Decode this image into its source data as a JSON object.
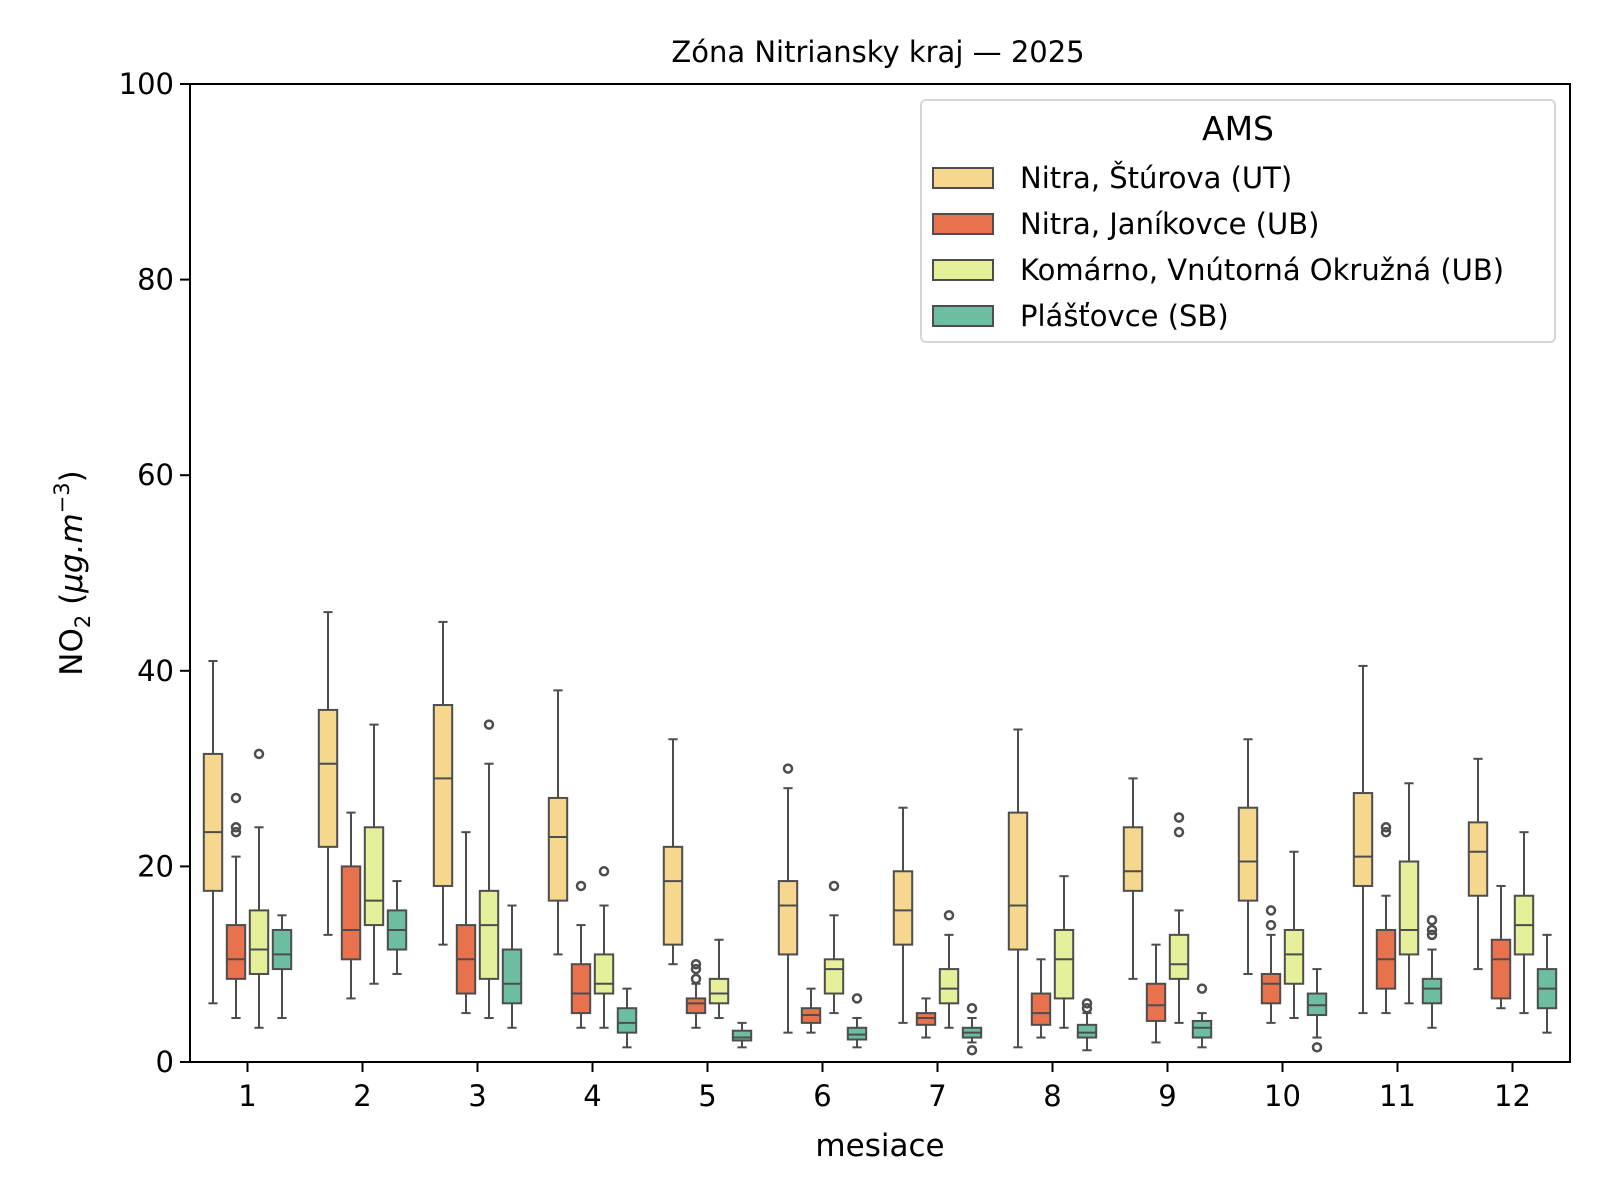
{
  "chart_data": {
    "type": "box",
    "title": "Zóna Nitriansky kraj —  2025",
    "xlabel": "mesiace",
    "ylabel": {
      "quantity": "NO",
      "subscript": "2",
      "unit_prefix": "μg.m",
      "unit_exp": "−3"
    },
    "ylim": [
      0,
      100
    ],
    "yticks": [
      "0",
      "20",
      "40",
      "60",
      "80",
      "100"
    ],
    "categories": [
      "1",
      "2",
      "3",
      "4",
      "5",
      "6",
      "7",
      "8",
      "9",
      "10",
      "11",
      "12"
    ],
    "legend": {
      "title": "AMS",
      "position": "upper right"
    },
    "series": [
      {
        "name": "Nitra, Štúrova (UT)",
        "color": "#f5d78e",
        "boxes": [
          {
            "q1": 17.5,
            "med": 23.5,
            "q3": 31.5,
            "lo": 6.0,
            "hi": 41.0,
            "fliers": []
          },
          {
            "q1": 22.0,
            "med": 30.5,
            "q3": 36.0,
            "lo": 13.0,
            "hi": 46.0,
            "fliers": []
          },
          {
            "q1": 18.0,
            "med": 29.0,
            "q3": 36.5,
            "lo": 12.0,
            "hi": 45.0,
            "fliers": []
          },
          {
            "q1": 16.5,
            "med": 23.0,
            "q3": 27.0,
            "lo": 11.0,
            "hi": 38.0,
            "fliers": []
          },
          {
            "q1": 12.0,
            "med": 18.5,
            "q3": 22.0,
            "lo": 10.0,
            "hi": 33.0,
            "fliers": []
          },
          {
            "q1": 11.0,
            "med": 16.0,
            "q3": 18.5,
            "lo": 3.0,
            "hi": 28.0,
            "fliers": [
              30.0
            ]
          },
          {
            "q1": 12.0,
            "med": 15.5,
            "q3": 19.5,
            "lo": 4.0,
            "hi": 26.0,
            "fliers": []
          },
          {
            "q1": 11.5,
            "med": 16.0,
            "q3": 25.5,
            "lo": 1.5,
            "hi": 34.0,
            "fliers": []
          },
          {
            "q1": 17.5,
            "med": 19.5,
            "q3": 24.0,
            "lo": 8.5,
            "hi": 29.0,
            "fliers": []
          },
          {
            "q1": 16.5,
            "med": 20.5,
            "q3": 26.0,
            "lo": 9.0,
            "hi": 33.0,
            "fliers": []
          },
          {
            "q1": 18.0,
            "med": 21.0,
            "q3": 27.5,
            "lo": 5.0,
            "hi": 40.5,
            "fliers": []
          },
          {
            "q1": 17.0,
            "med": 21.5,
            "q3": 24.5,
            "lo": 9.5,
            "hi": 31.0,
            "fliers": []
          }
        ]
      },
      {
        "name": "Nitra, Janíkovce (UB)",
        "color": "#e8724e",
        "boxes": [
          {
            "q1": 8.5,
            "med": 10.5,
            "q3": 14.0,
            "lo": 4.5,
            "hi": 21.0,
            "fliers": [
              23.5,
              24.0,
              27.0
            ]
          },
          {
            "q1": 10.5,
            "med": 13.5,
            "q3": 20.0,
            "lo": 6.5,
            "hi": 25.5,
            "fliers": []
          },
          {
            "q1": 7.0,
            "med": 10.5,
            "q3": 14.0,
            "lo": 5.0,
            "hi": 23.5,
            "fliers": []
          },
          {
            "q1": 5.0,
            "med": 7.0,
            "q3": 10.0,
            "lo": 3.5,
            "hi": 14.0,
            "fliers": [
              18.0
            ]
          },
          {
            "q1": 5.0,
            "med": 6.0,
            "q3": 6.5,
            "lo": 3.5,
            "hi": 8.0,
            "fliers": [
              8.5,
              9.5,
              10.0
            ]
          },
          {
            "q1": 4.0,
            "med": 4.8,
            "q3": 5.5,
            "lo": 3.0,
            "hi": 7.5,
            "fliers": []
          },
          {
            "q1": 3.8,
            "med": 4.5,
            "q3": 5.0,
            "lo": 2.5,
            "hi": 6.5,
            "fliers": []
          },
          {
            "q1": 3.8,
            "med": 5.0,
            "q3": 7.0,
            "lo": 2.5,
            "hi": 10.5,
            "fliers": []
          },
          {
            "q1": 4.2,
            "med": 5.8,
            "q3": 8.0,
            "lo": 2.0,
            "hi": 12.0,
            "fliers": []
          },
          {
            "q1": 6.0,
            "med": 8.0,
            "q3": 9.0,
            "lo": 4.0,
            "hi": 13.0,
            "fliers": [
              14.0,
              15.5
            ]
          },
          {
            "q1": 7.5,
            "med": 10.5,
            "q3": 13.5,
            "lo": 5.0,
            "hi": 17.0,
            "fliers": [
              23.5,
              24.0
            ]
          },
          {
            "q1": 6.5,
            "med": 10.5,
            "q3": 12.5,
            "lo": 5.5,
            "hi": 18.0,
            "fliers": []
          }
        ]
      },
      {
        "name": "Komárno, Vnútorná Okružná (UB)",
        "color": "#e6f09a",
        "boxes": [
          {
            "q1": 9.0,
            "med": 11.5,
            "q3": 15.5,
            "lo": 3.5,
            "hi": 24.0,
            "fliers": [
              31.5
            ]
          },
          {
            "q1": 14.0,
            "med": 16.5,
            "q3": 24.0,
            "lo": 8.0,
            "hi": 34.5,
            "fliers": []
          },
          {
            "q1": 8.5,
            "med": 14.0,
            "q3": 17.5,
            "lo": 4.5,
            "hi": 30.5,
            "fliers": [
              34.5
            ]
          },
          {
            "q1": 7.0,
            "med": 8.0,
            "q3": 11.0,
            "lo": 3.5,
            "hi": 16.0,
            "fliers": [
              19.5
            ]
          },
          {
            "q1": 6.0,
            "med": 7.0,
            "q3": 8.5,
            "lo": 4.5,
            "hi": 12.5,
            "fliers": []
          },
          {
            "q1": 7.0,
            "med": 9.5,
            "q3": 10.5,
            "lo": 5.0,
            "hi": 15.0,
            "fliers": [
              18.0
            ]
          },
          {
            "q1": 6.0,
            "med": 7.5,
            "q3": 9.5,
            "lo": 3.5,
            "hi": 13.0,
            "fliers": [
              15.0
            ]
          },
          {
            "q1": 6.5,
            "med": 10.5,
            "q3": 13.5,
            "lo": 3.5,
            "hi": 19.0,
            "fliers": []
          },
          {
            "q1": 8.5,
            "med": 10.0,
            "q3": 13.0,
            "lo": 4.0,
            "hi": 15.5,
            "fliers": [
              23.5,
              25.0
            ]
          },
          {
            "q1": 8.0,
            "med": 11.0,
            "q3": 13.5,
            "lo": 4.5,
            "hi": 21.5,
            "fliers": []
          },
          {
            "q1": 11.0,
            "med": 13.5,
            "q3": 20.5,
            "lo": 6.0,
            "hi": 28.5,
            "fliers": []
          },
          {
            "q1": 11.0,
            "med": 14.0,
            "q3": 17.0,
            "lo": 5.0,
            "hi": 23.5,
            "fliers": []
          }
        ]
      },
      {
        "name": "Plášťovce (SB)",
        "color": "#6dbea0",
        "boxes": [
          {
            "q1": 9.5,
            "med": 11.0,
            "q3": 13.5,
            "lo": 4.5,
            "hi": 15.0,
            "fliers": []
          },
          {
            "q1": 11.5,
            "med": 13.5,
            "q3": 15.5,
            "lo": 9.0,
            "hi": 18.5,
            "fliers": []
          },
          {
            "q1": 6.0,
            "med": 8.0,
            "q3": 11.5,
            "lo": 3.5,
            "hi": 16.0,
            "fliers": []
          },
          {
            "q1": 3.0,
            "med": 4.0,
            "q3": 5.5,
            "lo": 1.5,
            "hi": 7.5,
            "fliers": []
          },
          {
            "q1": 2.2,
            "med": 2.5,
            "q3": 3.2,
            "lo": 1.5,
            "hi": 4.0,
            "fliers": []
          },
          {
            "q1": 2.3,
            "med": 2.8,
            "q3": 3.5,
            "lo": 1.5,
            "hi": 4.5,
            "fliers": [
              6.5
            ]
          },
          {
            "q1": 2.5,
            "med": 3.0,
            "q3": 3.5,
            "lo": 2.0,
            "hi": 4.5,
            "fliers": [
              1.2,
              5.5
            ]
          },
          {
            "q1": 2.5,
            "med": 3.0,
            "q3": 3.8,
            "lo": 1.2,
            "hi": 5.0,
            "fliers": [
              5.5,
              6.0
            ]
          },
          {
            "q1": 2.5,
            "med": 3.5,
            "q3": 4.2,
            "lo": 1.5,
            "hi": 5.0,
            "fliers": [
              7.5
            ]
          },
          {
            "q1": 4.8,
            "med": 5.8,
            "q3": 7.0,
            "lo": 2.5,
            "hi": 9.5,
            "fliers": [
              1.5
            ]
          },
          {
            "q1": 6.0,
            "med": 7.5,
            "q3": 8.5,
            "lo": 3.5,
            "hi": 11.5,
            "fliers": [
              13.0,
              13.5,
              14.5
            ]
          },
          {
            "q1": 5.5,
            "med": 7.5,
            "q3": 9.5,
            "lo": 3.0,
            "hi": 13.0,
            "fliers": []
          }
        ]
      }
    ]
  }
}
